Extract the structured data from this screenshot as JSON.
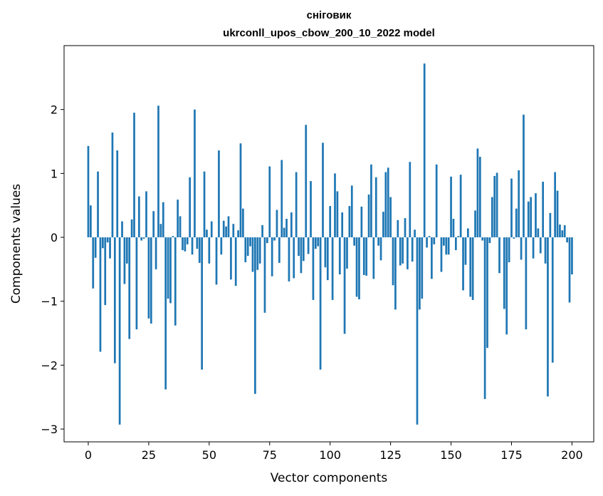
{
  "chart_data": {
    "type": "bar",
    "title": "сніговик",
    "subtitle": "ukrconll_upos_cbow_200_10_2022 model",
    "xlabel": "Vector components",
    "ylabel": "Components values",
    "xlim": [
      -10,
      209
    ],
    "ylim": [
      -3.2,
      3.0
    ],
    "xticks": [
      0,
      25,
      50,
      75,
      100,
      125,
      150,
      175,
      200
    ],
    "xtick_labels": [
      "0",
      "25",
      "50",
      "75",
      "100",
      "125",
      "150",
      "175",
      "200"
    ],
    "yticks": [
      -3,
      -2,
      -1,
      0,
      1,
      2
    ],
    "ytick_labels": [
      "−3",
      "−2",
      "−1",
      "0",
      "1",
      "2"
    ],
    "grid": false,
    "bar_color": "#1f77b4",
    "values": [
      1.43,
      0.5,
      -0.8,
      -0.32,
      1.03,
      -1.79,
      -0.17,
      -1.06,
      -0.08,
      -0.33,
      1.64,
      -1.97,
      1.36,
      -2.93,
      0.25,
      -0.73,
      -0.41,
      -1.59,
      0.28,
      1.95,
      -1.44,
      0.64,
      -0.05,
      -0.02,
      0.72,
      -1.27,
      -1.35,
      0.41,
      -0.5,
      2.06,
      0.21,
      0.55,
      -2.38,
      -0.96,
      -1.03,
      0.02,
      -1.38,
      0.59,
      0.33,
      -0.2,
      -0.22,
      -0.11,
      0.94,
      -0.27,
      2.0,
      -0.18,
      -0.4,
      -2.07,
      1.03,
      0.12,
      -0.41,
      0.25,
      0.0,
      -0.74,
      1.36,
      -0.27,
      0.26,
      0.17,
      0.33,
      -0.66,
      0.21,
      -0.76,
      0.11,
      1.47,
      0.45,
      -0.39,
      -0.29,
      -0.14,
      -0.54,
      -2.45,
      -0.51,
      -0.41,
      0.19,
      -1.18,
      -0.09,
      1.11,
      -0.61,
      -0.05,
      0.43,
      -0.4,
      1.21,
      0.15,
      0.29,
      -0.69,
      0.39,
      -0.64,
      1.02,
      -0.29,
      -0.56,
      -0.37,
      1.76,
      -0.26,
      0.88,
      -0.98,
      -0.18,
      -0.14,
      -2.07,
      1.48,
      -0.47,
      -0.67,
      0.49,
      -0.98,
      1.0,
      0.72,
      -0.58,
      0.39,
      -1.51,
      -0.49,
      0.49,
      0.81,
      -0.13,
      -0.93,
      -0.97,
      0.48,
      -0.59,
      -0.6,
      0.67,
      1.14,
      -0.65,
      0.94,
      -0.13,
      -0.36,
      0.4,
      1.02,
      1.09,
      0.63,
      -0.75,
      -1.13,
      0.27,
      -0.44,
      -0.41,
      0.3,
      -0.5,
      1.18,
      -0.38,
      0.12,
      -2.93,
      -1.13,
      -0.96,
      2.72,
      -0.16,
      0.02,
      -0.65,
      -0.11,
      1.14,
      0.0,
      -0.54,
      -0.13,
      -0.27,
      -0.27,
      0.95,
      0.29,
      -0.2,
      0.02,
      0.98,
      -0.83,
      -0.43,
      0.14,
      -0.93,
      -0.98,
      0.42,
      1.39,
      1.26,
      -0.05,
      -2.53,
      -1.73,
      -0.09,
      0.63,
      0.96,
      1.01,
      -0.56,
      0.0,
      -1.12,
      -1.52,
      -0.39,
      0.92,
      -0.02,
      0.45,
      1.05,
      -0.35,
      1.92,
      -1.44,
      0.56,
      0.63,
      -0.33,
      0.69,
      0.14,
      -0.25,
      0.87,
      -0.41,
      -2.49,
      0.38,
      -1.96,
      1.02,
      0.73,
      0.2,
      0.11,
      0.19,
      -0.08,
      -1.02,
      -0.58
    ]
  }
}
